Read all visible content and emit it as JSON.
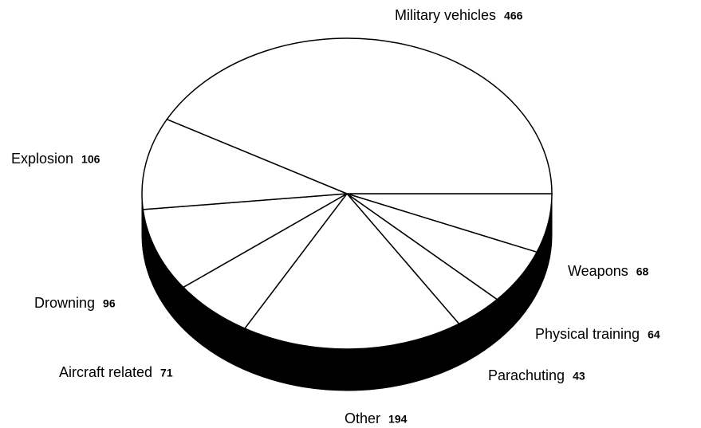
{
  "chart_data": {
    "type": "pie",
    "categories": [
      "Weapons",
      "Physical training",
      "Parachuting",
      "Other",
      "Aircraft related",
      "Drowning",
      "Explosion",
      "Military vehicles"
    ],
    "values": [
      68,
      64,
      43,
      194,
      71,
      96,
      106,
      466
    ],
    "color": "#ffffff"
  }
}
